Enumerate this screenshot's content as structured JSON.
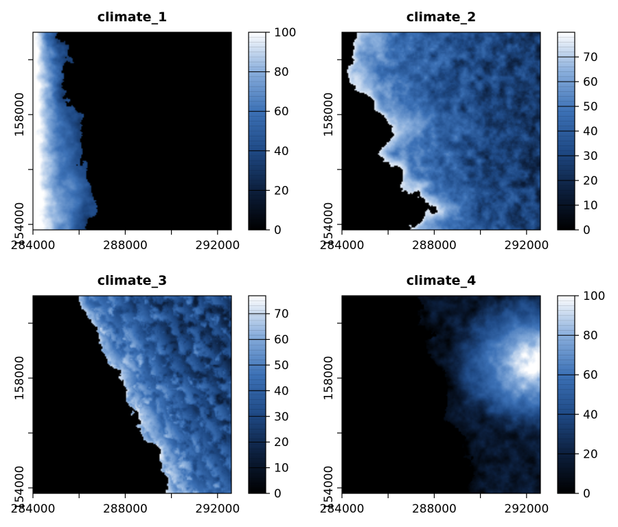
{
  "colors": {
    "ramp": [
      "#000000",
      "#0c1f3d",
      "#1f4a86",
      "#3c71b6",
      "#89aedc",
      "#ffffff"
    ],
    "background": "#ffffff",
    "ink": "#000000"
  },
  "chart_data": [
    {
      "type": "heatmap",
      "title": "climate_1",
      "xlim": [
        284000,
        292600
      ],
      "ylim": [
        153800,
        161000
      ],
      "x_ticks": [
        284000,
        286000,
        288000,
        290000,
        292000
      ],
      "x_tick_labels": [
        "284000",
        "",
        "288000",
        "",
        "292000"
      ],
      "y_ticks": [
        154000,
        156000,
        158000,
        160000
      ],
      "y_tick_labels": [
        "154000",
        "",
        "158000",
        ""
      ],
      "legend_ticks": [
        0,
        20,
        40,
        60,
        80,
        100
      ],
      "legend_range": [
        0,
        100
      ],
      "pattern": "west_high",
      "grid": false,
      "legend_position": "right"
    },
    {
      "type": "heatmap",
      "title": "climate_2",
      "xlim": [
        284000,
        292600
      ],
      "ylim": [
        153800,
        161000
      ],
      "x_ticks": [
        284000,
        286000,
        288000,
        290000,
        292000
      ],
      "x_tick_labels": [
        "284000",
        "",
        "288000",
        "",
        "292000"
      ],
      "y_ticks": [
        154000,
        156000,
        158000,
        160000
      ],
      "y_tick_labels": [
        "154000",
        "",
        "158000",
        ""
      ],
      "legend_ticks": [
        0,
        10,
        20,
        30,
        40,
        50,
        60,
        70
      ],
      "legend_range": [
        0,
        80
      ],
      "pattern": "ridge_band",
      "grid": false,
      "legend_position": "right"
    },
    {
      "type": "heatmap",
      "title": "climate_3",
      "xlim": [
        284000,
        292600
      ],
      "ylim": [
        153800,
        161000
      ],
      "x_ticks": [
        284000,
        286000,
        288000,
        290000,
        292000
      ],
      "x_tick_labels": [
        "284000",
        "",
        "288000",
        "",
        "292000"
      ],
      "y_ticks": [
        154000,
        156000,
        158000,
        160000
      ],
      "y_tick_labels": [
        "154000",
        "",
        "158000",
        ""
      ],
      "legend_ticks": [
        0,
        10,
        20,
        30,
        40,
        50,
        60,
        70
      ],
      "legend_range": [
        0,
        77
      ],
      "pattern": "east_dissected",
      "grid": false,
      "legend_position": "right"
    },
    {
      "type": "heatmap",
      "title": "climate_4",
      "xlim": [
        284000,
        292600
      ],
      "ylim": [
        153800,
        161000
      ],
      "x_ticks": [
        284000,
        286000,
        288000,
        290000,
        292000
      ],
      "x_tick_labels": [
        "284000",
        "",
        "288000",
        "",
        "292000"
      ],
      "y_ticks": [
        154000,
        156000,
        158000,
        160000
      ],
      "y_tick_labels": [
        "154000",
        "",
        "158000",
        ""
      ],
      "legend_ticks": [
        0,
        20,
        40,
        60,
        80,
        100
      ],
      "legend_range": [
        0,
        100
      ],
      "pattern": "east_peak",
      "grid": false,
      "legend_position": "right"
    }
  ]
}
